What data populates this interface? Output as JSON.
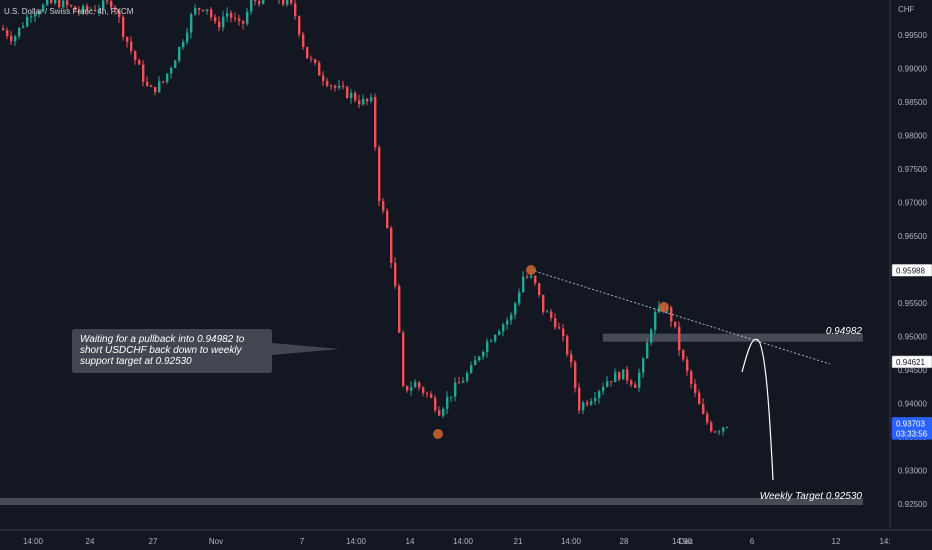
{
  "header": {
    "symbol_title": "U.S. Dollar / Swiss Franc, 4h, FXCM"
  },
  "price_axis": {
    "currency": "CHF",
    "ticks": [
      "0.99500",
      "0.99000",
      "0.98500",
      "0.98000",
      "0.97500",
      "0.97000",
      "0.96500",
      "0.96000",
      "0.95500",
      "0.95000",
      "0.94500",
      "0.94000",
      "0.93500",
      "0.93000",
      "0.92500"
    ],
    "badges": [
      {
        "name": "high-price-badge",
        "price": 0.95988,
        "label": "0.95988",
        "bg": "#ffffff",
        "color": "#131722",
        "border": "#787b86"
      },
      {
        "name": "level-price-badge",
        "price": 0.94621,
        "label": "0.94621",
        "bg": "#ffffff",
        "color": "#131722",
        "border": "#787b86"
      },
      {
        "name": "last-price-badge",
        "price": 0.93703,
        "label": "0.93703",
        "countdown": "03:33:56",
        "bg": "#2962ff",
        "color": "#ffffff",
        "border": "#2962ff"
      }
    ]
  },
  "time_axis": {
    "ticks": [
      "14:00",
      "24",
      "27",
      "Nov",
      "7",
      "14:00",
      "14",
      "14:00",
      "21",
      "14:00",
      "28",
      "14:00",
      "Dec",
      "6",
      "12",
      "14:"
    ]
  },
  "annotations": {
    "callout_text": "Waiting for a pullback into 0.94982 to short USDCHF back down to weekly support target at 0.92530",
    "resistance_label": "0.94982",
    "target_label": "Weekly Target 0.92530"
  },
  "colors": {
    "background": "#131722",
    "bull": "#26a69a",
    "bear": "#ef5350",
    "axis_text": "#b2b5be",
    "zone": "#50535e",
    "marker": "#c4632f",
    "trendline": "#d1d4dc"
  },
  "chart_data": {
    "type": "candlestick",
    "title": "U.S. Dollar / Swiss Franc, 4h, FXCM",
    "ylabel": "CHF",
    "ylim": [
      0.9225,
      1.0
    ],
    "resistance_zone": 0.94982,
    "support_target": 0.9253,
    "swing_markers": [
      0.9552,
      0.935,
      0.96
    ],
    "approximate_path": [
      {
        "t": "start",
        "close": 0.995
      },
      {
        "t": "24",
        "close": 0.998
      },
      {
        "t": "27",
        "close": 0.988
      },
      {
        "t": "Nov",
        "close": 0.999
      },
      {
        "t": "7",
        "close": 0.982
      },
      {
        "t": "14",
        "close": 0.94
      },
      {
        "t": "21",
        "close": 0.958
      },
      {
        "t": "28",
        "close": 0.942
      },
      {
        "t": "Dec",
        "close": 0.937
      }
    ]
  }
}
